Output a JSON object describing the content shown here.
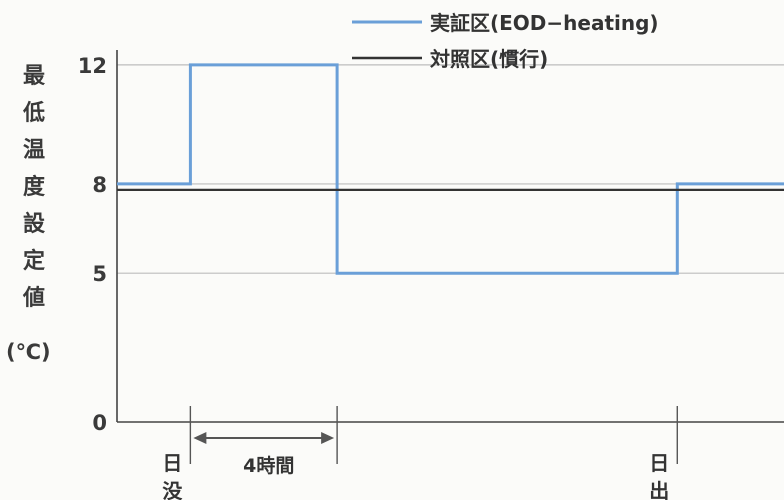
{
  "chart_data": {
    "type": "line",
    "ylabel": "最低温度設定値",
    "ylabel_unit": "(℃)",
    "y_ticks": [
      0,
      5,
      8,
      12
    ],
    "ylim": [
      0,
      12.5
    ],
    "x_range": [
      0,
      100
    ],
    "legend_position": "top-right",
    "series": [
      {
        "name": "実証区(EOD−heating)",
        "color": "#6a9fd8",
        "points": [
          [
            0,
            8
          ],
          [
            11,
            8
          ],
          [
            11,
            12
          ],
          [
            33,
            12
          ],
          [
            33,
            5
          ],
          [
            84,
            5
          ],
          [
            84,
            8
          ],
          [
            100,
            8
          ]
        ]
      },
      {
        "name": "対照区(慣行)",
        "color": "#333333",
        "points": [
          [
            0,
            7.8
          ],
          [
            100,
            7.8
          ]
        ]
      }
    ],
    "annotations": {
      "sunset_label": "日没",
      "sunrise_label": "日出",
      "duration_label": "4時間",
      "sunset_x": 11,
      "duration_end_x": 33,
      "sunrise_x": 84
    }
  }
}
